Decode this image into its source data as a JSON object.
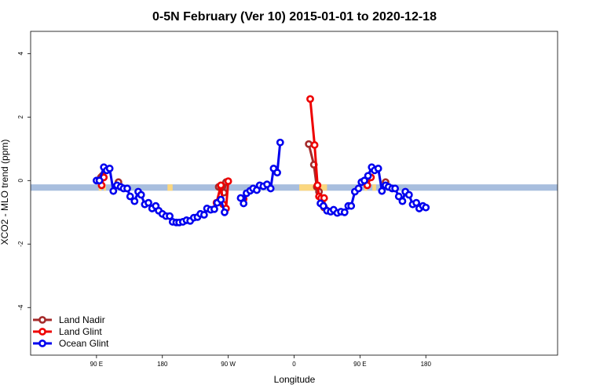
{
  "chart_data": {
    "type": "line",
    "title": "0-5N February (Ver 10)   2015-01-01 to 2020-12-18",
    "xlabel": "Longitude",
    "ylabel": "XCO2 - MLO trend (ppm)",
    "xlim": [
      -90,
      630
    ],
    "ylim": [
      -5.5,
      4.7
    ],
    "x_ticks": [
      {
        "value": 0,
        "label": "90 E"
      },
      {
        "value": 90,
        "label": "180"
      },
      {
        "value": 180,
        "label": "90 W"
      },
      {
        "value": 270,
        "label": "0"
      },
      {
        "value": 360,
        "label": "90 E"
      },
      {
        "value": 450,
        "label": "180"
      }
    ],
    "y_ticks": [
      {
        "value": -4,
        "label": "-4"
      },
      {
        "value": -2,
        "label": "-2"
      },
      {
        "value": 0,
        "label": "0"
      },
      {
        "value": 2,
        "label": "2"
      },
      {
        "value": 4,
        "label": "4"
      }
    ],
    "surface_band": {
      "y_range": [
        -0.32,
        -0.12
      ],
      "ocean_color": "#a8bede",
      "land_color": "#fbd77f",
      "land_segments": [
        [
          3,
          7
        ],
        [
          10,
          13
        ],
        [
          22,
          25
        ],
        [
          97,
          104
        ],
        [
          164,
          175
        ],
        [
          277,
          315
        ],
        [
          366,
          370
        ],
        [
          377,
          382
        ],
        [
          388,
          392
        ]
      ]
    },
    "legend_position": "bottom-left",
    "series": [
      {
        "name": "Land Nadir",
        "color": "#a52a2a",
        "segments": [
          [
            [
              6,
              0.1
            ],
            [
              8,
              0.15
            ]
          ],
          [
            [
              30,
              -0.05
            ]
          ],
          [
            [
              167,
              -0.2
            ],
            [
              170,
              -0.18
            ],
            [
              174,
              -0.38
            ],
            [
              177,
              -0.05
            ]
          ],
          [
            [
              290,
              1.15
            ],
            [
              297,
              0.5
            ],
            [
              301,
              -0.2
            ],
            [
              304,
              -0.35
            ]
          ],
          [
            [
              308,
              -0.7
            ],
            [
              311,
              -0.85
            ]
          ],
          [
            [
              372,
              0.1
            ]
          ],
          [
            [
              395,
              -0.05
            ]
          ]
        ]
      },
      {
        "name": "Land Glint",
        "color": "#ee0000",
        "segments": [
          [
            [
              7,
              -0.15
            ],
            [
              10,
              0.1
            ]
          ],
          [
            [
              164,
              -0.7
            ],
            [
              170,
              -0.15
            ],
            [
              173,
              -0.75
            ],
            [
              177,
              -0.88
            ],
            [
              180,
              -0.02
            ]
          ],
          [
            [
              201,
              -0.58
            ]
          ],
          [
            [
              292,
              2.57
            ],
            [
              298,
              1.12
            ],
            [
              302,
              -0.15
            ],
            [
              304,
              -0.5
            ],
            [
              307,
              -0.55
            ],
            [
              311,
              -0.55
            ]
          ],
          [
            [
              370,
              -0.15
            ],
            [
              375,
              0.1
            ]
          ]
        ]
      },
      {
        "name": "Ocean Glint",
        "color": "#0000ee",
        "segments": [
          [
            [
              0,
              0
            ],
            [
              4,
              0
            ],
            [
              10,
              0.42
            ],
            [
              14,
              0.32
            ],
            [
              18,
              0.38
            ],
            [
              23,
              -0.33
            ],
            [
              28,
              -0.15
            ],
            [
              33,
              -0.2
            ],
            [
              37,
              -0.25
            ],
            [
              42,
              -0.25
            ],
            [
              46,
              -0.5
            ],
            [
              52,
              -0.65
            ],
            [
              57,
              -0.35
            ],
            [
              61,
              -0.45
            ],
            [
              66,
              -0.75
            ],
            [
              71,
              -0.7
            ],
            [
              76,
              -0.88
            ],
            [
              81,
              -0.8
            ],
            [
              85,
              -0.95
            ],
            [
              90,
              -1.05
            ],
            [
              95,
              -1.12
            ],
            [
              100,
              -1.12
            ],
            [
              104,
              -1.3
            ],
            [
              109,
              -1.32
            ],
            [
              113,
              -1.32
            ],
            [
              118,
              -1.3
            ],
            [
              123,
              -1.25
            ],
            [
              128,
              -1.27
            ],
            [
              133,
              -1.17
            ],
            [
              138,
              -1.15
            ],
            [
              142,
              -1.05
            ],
            [
              147,
              -1.08
            ],
            [
              151,
              -0.88
            ],
            [
              156,
              -0.92
            ],
            [
              161,
              -0.9
            ],
            [
              165,
              -0.7
            ],
            [
              170,
              -0.6
            ],
            [
              175,
              -1.0
            ]
          ],
          [
            [
              197,
              -0.55
            ],
            [
              201,
              -0.72
            ],
            [
              205,
              -0.4
            ],
            [
              210,
              -0.32
            ],
            [
              214,
              -0.25
            ],
            [
              219,
              -0.3
            ],
            [
              223,
              -0.15
            ],
            [
              228,
              -0.18
            ],
            [
              233,
              -0.12
            ],
            [
              238,
              -0.25
            ],
            [
              242,
              0.38
            ],
            [
              247,
              0.25
            ],
            [
              251,
              1.2
            ]
          ],
          [
            [
              306,
              -0.72
            ],
            [
              310,
              -0.8
            ],
            [
              315,
              -0.95
            ],
            [
              320,
              -0.98
            ],
            [
              324,
              -0.92
            ],
            [
              329,
              -1.02
            ],
            [
              334,
              -0.98
            ],
            [
              339,
              -1.0
            ],
            [
              344,
              -0.8
            ],
            [
              348,
              -0.8
            ],
            [
              353,
              -0.35
            ],
            [
              358,
              -0.25
            ],
            [
              362,
              -0.05
            ],
            [
              366,
              0
            ],
            [
              371,
              0.15
            ],
            [
              376,
              0.42
            ],
            [
              380,
              0.32
            ],
            [
              385,
              0.38
            ],
            [
              390,
              -0.33
            ],
            [
              395,
              -0.15
            ],
            [
              399,
              -0.2
            ],
            [
              404,
              -0.25
            ],
            [
              408,
              -0.25
            ],
            [
              413,
              -0.5
            ],
            [
              418,
              -0.65
            ],
            [
              422,
              -0.35
            ],
            [
              427,
              -0.45
            ],
            [
              432,
              -0.75
            ],
            [
              437,
              -0.7
            ],
            [
              441,
              -0.88
            ],
            [
              446,
              -0.8
            ],
            [
              450,
              -0.85
            ]
          ]
        ]
      }
    ]
  }
}
